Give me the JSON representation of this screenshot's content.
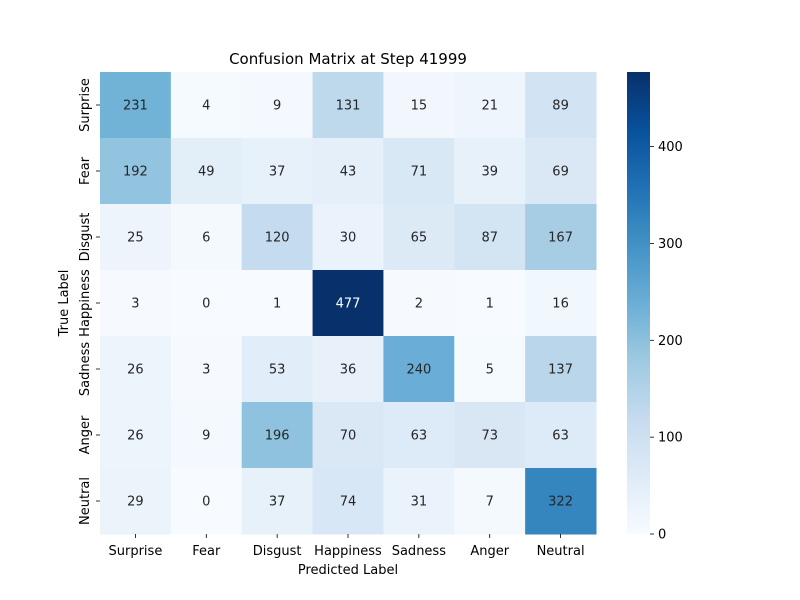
{
  "chart_data": {
    "type": "heatmap",
    "title": "Confusion Matrix at Step 41999",
    "xlabel": "Predicted Label",
    "ylabel": "True Label",
    "x_categories": [
      "Surprise",
      "Fear",
      "Disgust",
      "Happiness",
      "Sadness",
      "Anger",
      "Neutral"
    ],
    "y_categories": [
      "Surprise",
      "Fear",
      "Disgust",
      "Happiness",
      "Sadness",
      "Anger",
      "Neutral"
    ],
    "values": [
      [
        231,
        4,
        9,
        131,
        15,
        21,
        89
      ],
      [
        192,
        49,
        37,
        43,
        71,
        39,
        69
      ],
      [
        25,
        6,
        120,
        30,
        65,
        87,
        167
      ],
      [
        3,
        0,
        1,
        477,
        2,
        1,
        16
      ],
      [
        26,
        3,
        53,
        36,
        240,
        5,
        137
      ],
      [
        26,
        9,
        196,
        70,
        63,
        73,
        63
      ],
      [
        29,
        0,
        37,
        74,
        31,
        7,
        322
      ]
    ],
    "colormap": "Blues",
    "vmin": 0,
    "vmax": 477,
    "colorbar_ticks": [
      0,
      100,
      200,
      300,
      400
    ]
  }
}
